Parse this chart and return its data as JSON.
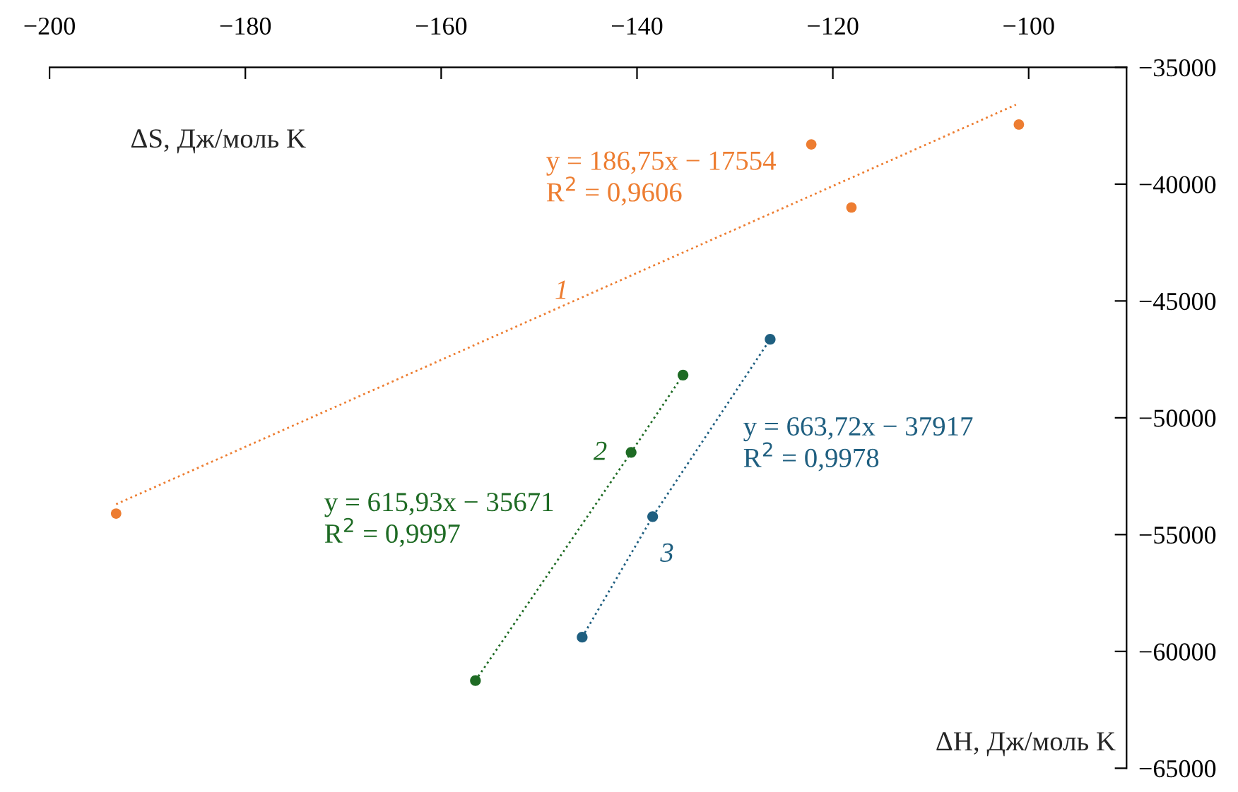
{
  "chart_data": {
    "type": "scatter",
    "xlabel": "ΔH, Дж/моль K",
    "ylabel": "ΔS, Дж/моль K",
    "xlim": [
      -200,
      -90
    ],
    "xticks": [
      -200,
      -180,
      -160,
      -140,
      -120,
      -100
    ],
    "ylim": [
      -65000,
      -35000
    ],
    "yticks": [
      -35000,
      -40000,
      -45000,
      -50000,
      -55000,
      -60000,
      -65000
    ],
    "grid": false,
    "legend": false,
    "series": [
      {
        "color": "#ed7d31",
        "marker": "circle",
        "x": [
          -193.2,
          -122.2,
          -118.1,
          -101.0
        ],
        "values": [
          -54100,
          -38300,
          -41000,
          -37450
        ]
      },
      {
        "type": "line",
        "color": "#ed7d31",
        "marker": "none",
        "line_style": "dotted",
        "x": [
          -193.2,
          -101.3
        ],
        "values": [
          -53700,
          -36600
        ]
      },
      {
        "type": "line",
        "color": "#1e6b24",
        "marker": "circle",
        "line_style": "dotted",
        "x": [
          -156.5,
          -140.6,
          -135.3
        ],
        "values": [
          -61250,
          -51480,
          -48170
        ]
      },
      {
        "type": "line",
        "color": "#1f5f80",
        "marker": "circle",
        "line_style": "dotted",
        "x": [
          -145.6,
          -138.4,
          -126.4
        ],
        "values": [
          -59390,
          -54230,
          -46640
        ]
      }
    ],
    "annotations": [
      "y = 186,75x − 17554\nR$^{2}$ = 0,9606",
      "1",
      "y = 615,93x − 35671\nR$^{2}$ = 0,9997",
      "2",
      "y = 663,72x − 37917\nR$^{2}$ = 0,9978",
      "3"
    ]
  }
}
